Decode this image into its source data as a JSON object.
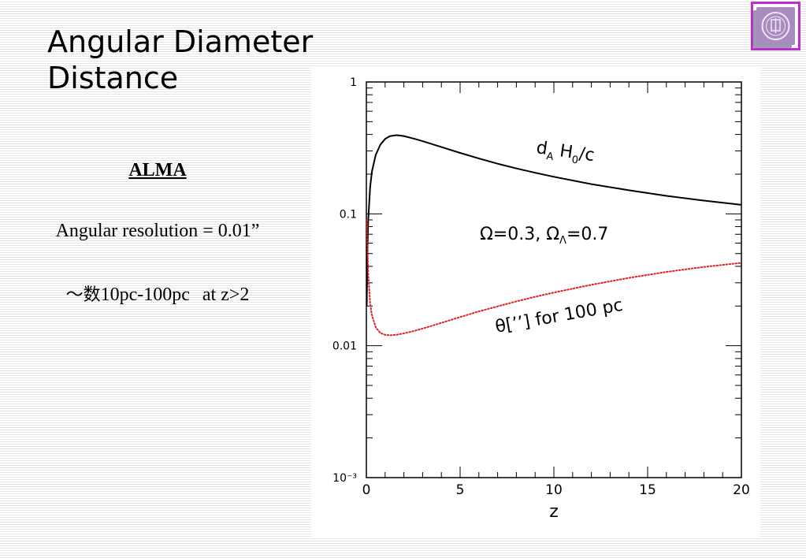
{
  "slide": {
    "title_line1": "Angular Diameter",
    "title_line2": "Distance"
  },
  "left_panel": {
    "heading": "ALMA",
    "resolution": "Angular resolution = 0.01”",
    "range_prefix": "～数",
    "range_value": "10pc-100pc",
    "range_condition": "at z>2"
  },
  "logo": {
    "icon": "university-seal-icon"
  },
  "chart_data": {
    "type": "line",
    "title": "",
    "xlabel": "z",
    "ylabel": "",
    "xlim": [
      0,
      20
    ],
    "ylim": [
      0.001,
      1
    ],
    "yscale": "log",
    "x_ticks": [
      "0",
      "5",
      "10",
      "15",
      "20"
    ],
    "y_ticks": [
      {
        "value": 1,
        "label": "1"
      },
      {
        "value": 0.1,
        "label": "0.1"
      },
      {
        "value": 0.01,
        "label": "0.01"
      },
      {
        "value": 0.001,
        "label": "10⁻³"
      }
    ],
    "grid": false,
    "annotations": {
      "cosmology": "Ω=0.3,  Ω",
      "cosmology_sub": "Λ",
      "cosmology_end": "=0.7",
      "series1_main": "d",
      "series1_sub": "A",
      "series1_rest": " H",
      "series1_sub2": "0",
      "series1_end": "/c",
      "series2_label": "θ[’’] for 100 pc"
    },
    "series": [
      {
        "style": "solid",
        "color": "#000000",
        "x": [
          0.02,
          0.05,
          0.1,
          0.2,
          0.3,
          0.5,
          0.75,
          1.0,
          1.25,
          1.6,
          2.0,
          2.5,
          3,
          4,
          5,
          6,
          7,
          8,
          9,
          10,
          12,
          14,
          16,
          18,
          20
        ],
        "y": [
          0.02,
          0.048,
          0.09,
          0.16,
          0.21,
          0.28,
          0.335,
          0.37,
          0.388,
          0.395,
          0.389,
          0.373,
          0.356,
          0.321,
          0.29,
          0.263,
          0.24,
          0.221,
          0.205,
          0.191,
          0.168,
          0.151,
          0.137,
          0.126,
          0.117
        ]
      },
      {
        "style": "dotted",
        "color": "#e02020",
        "x": [
          0.03,
          0.05,
          0.1,
          0.2,
          0.3,
          0.5,
          0.75,
          1.0,
          1.25,
          1.6,
          2.0,
          2.5,
          3,
          4,
          5,
          6,
          7,
          8,
          9,
          10,
          12,
          14,
          16,
          18,
          20
        ],
        "y": [
          0.09,
          0.06,
          0.035,
          0.021,
          0.017,
          0.0138,
          0.0125,
          0.0121,
          0.012,
          0.0121,
          0.0124,
          0.0129,
          0.0135,
          0.0149,
          0.0165,
          0.0182,
          0.0199,
          0.0217,
          0.0235,
          0.0253,
          0.029,
          0.0327,
          0.0363,
          0.0396,
          0.0425
        ]
      }
    ]
  }
}
